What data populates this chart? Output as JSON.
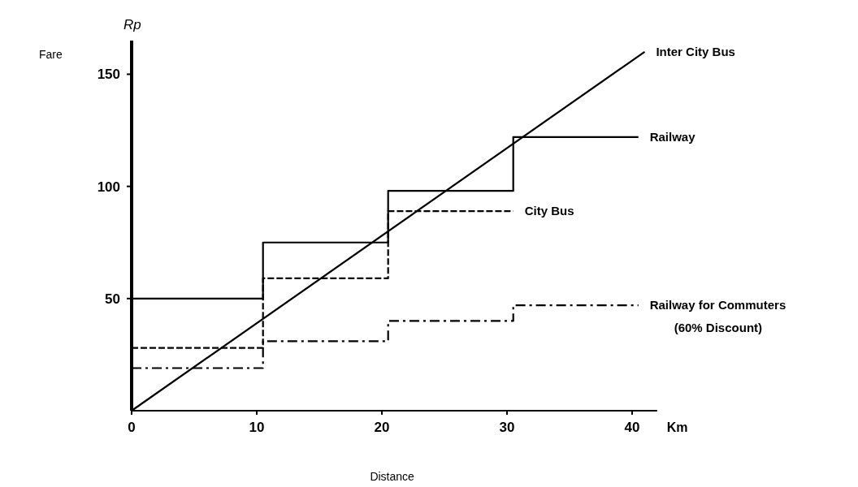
{
  "chart_data": {
    "type": "step",
    "xlabel": "Distance",
    "ylabel": "Fare",
    "annotations": [
      "Rp",
      "Km"
    ],
    "xlim": [
      0,
      42
    ],
    "ylim": [
      0,
      165
    ],
    "xticks": [
      0,
      10,
      20,
      30,
      40
    ],
    "yticks": [
      50,
      100,
      150
    ],
    "grid": false,
    "series": [
      {
        "name": "Inter City Bus",
        "type": "line",
        "color": "#000000",
        "x": [
          0,
          41
        ],
        "values": [
          0,
          160
        ]
      },
      {
        "name": "Railway",
        "color": "#000000",
        "x": [
          0,
          10.5,
          20.5,
          30.5,
          40.5
        ],
        "values": [
          50,
          75,
          98,
          122,
          122
        ]
      },
      {
        "name": "City Bus",
        "color": "#000000",
        "line_style": "dashed",
        "x": [
          0,
          10.5,
          20.5,
          30.5
        ],
        "values": [
          28,
          59,
          89,
          89
        ]
      },
      {
        "name": "Railway for Commuters (60% Discount)",
        "color": "#000000",
        "line_style": "dotted",
        "x": [
          0,
          10.5,
          20.5,
          30.5,
          40.5
        ],
        "values": [
          19,
          31,
          40,
          47,
          47
        ]
      }
    ]
  }
}
